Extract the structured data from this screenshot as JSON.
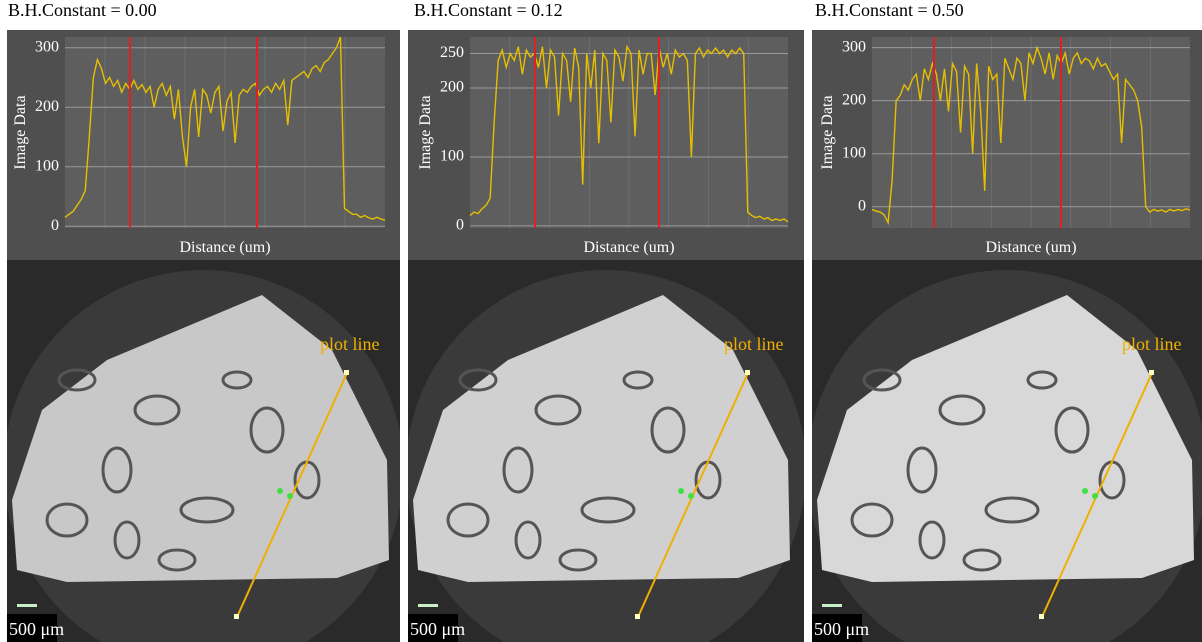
{
  "chart_data": [
    {
      "type": "line",
      "title": "B.H.Constant = 0.00",
      "ylabel": "Image Data",
      "xlabel": "Distance (um)",
      "color": "#e6bf00",
      "grid": true,
      "ylim": [
        -3,
        318
      ],
      "yticks": [
        0,
        100,
        200,
        300
      ],
      "values": [
        15,
        20,
        25,
        35,
        45,
        60,
        150,
        250,
        280,
        265,
        240,
        250,
        235,
        245,
        225,
        240,
        230,
        245,
        230,
        238,
        225,
        235,
        200,
        230,
        240,
        220,
        235,
        180,
        230,
        150,
        100,
        200,
        230,
        150,
        230,
        220,
        190,
        225,
        235,
        160,
        210,
        225,
        140,
        220,
        230,
        225,
        235,
        240,
        220,
        230,
        235,
        225,
        240,
        230,
        245,
        170,
        245,
        250,
        255,
        260,
        250,
        265,
        270,
        260,
        275,
        280,
        290,
        300,
        318,
        30,
        25,
        20,
        20,
        15,
        18,
        14,
        12,
        15,
        12,
        10
      ]
    },
    {
      "type": "line",
      "title": "B.H.Constant = 0.12",
      "ylabel": "Image Data",
      "xlabel": "Distance (um)",
      "color": "#e6bf00",
      "grid": true,
      "ylim": [
        -3,
        274
      ],
      "yticks": [
        0,
        100,
        200,
        250
      ],
      "values": [
        15,
        20,
        18,
        25,
        30,
        40,
        150,
        240,
        255,
        230,
        250,
        240,
        260,
        220,
        255,
        245,
        250,
        230,
        260,
        200,
        255,
        245,
        160,
        250,
        240,
        180,
        258,
        230,
        60,
        250,
        200,
        255,
        120,
        250,
        240,
        150,
        255,
        245,
        210,
        260,
        250,
        130,
        255,
        220,
        250,
        250,
        190,
        258,
        230,
        250,
        220,
        255,
        245,
        250,
        240,
        100,
        250,
        258,
        245,
        255,
        250,
        258,
        250,
        255,
        245,
        255,
        250,
        258,
        250,
        20,
        15,
        12,
        14,
        10,
        12,
        8,
        10,
        8,
        10,
        6
      ]
    },
    {
      "type": "line",
      "title": "B.H.Constant = 0.50",
      "ylabel": "Image Data",
      "xlabel": "Distance (um)",
      "color": "#e6bf00",
      "grid": true,
      "ylim": [
        -40,
        320
      ],
      "yticks": [
        0,
        100,
        200,
        300
      ],
      "values": [
        -5,
        -8,
        -10,
        -15,
        -30,
        50,
        200,
        210,
        230,
        220,
        240,
        250,
        200,
        260,
        240,
        270,
        250,
        200,
        260,
        180,
        270,
        255,
        140,
        265,
        250,
        100,
        270,
        180,
        30,
        265,
        240,
        250,
        120,
        280,
        260,
        240,
        280,
        270,
        200,
        290,
        270,
        300,
        280,
        250,
        290,
        240,
        285,
        270,
        290,
        250,
        280,
        290,
        270,
        280,
        275,
        260,
        280,
        265,
        270,
        255,
        240,
        250,
        120,
        240,
        230,
        220,
        200,
        150,
        0,
        -10,
        -5,
        -8,
        -6,
        -10,
        -5,
        -8,
        -5,
        -7,
        -4,
        -6
      ]
    }
  ],
  "images": [
    {
      "annotation": "plot line",
      "scale_bar": "500 μm"
    },
    {
      "annotation": "plot line",
      "scale_bar": "500 μm"
    },
    {
      "annotation": "plot line",
      "scale_bar": "500 μm"
    }
  ]
}
